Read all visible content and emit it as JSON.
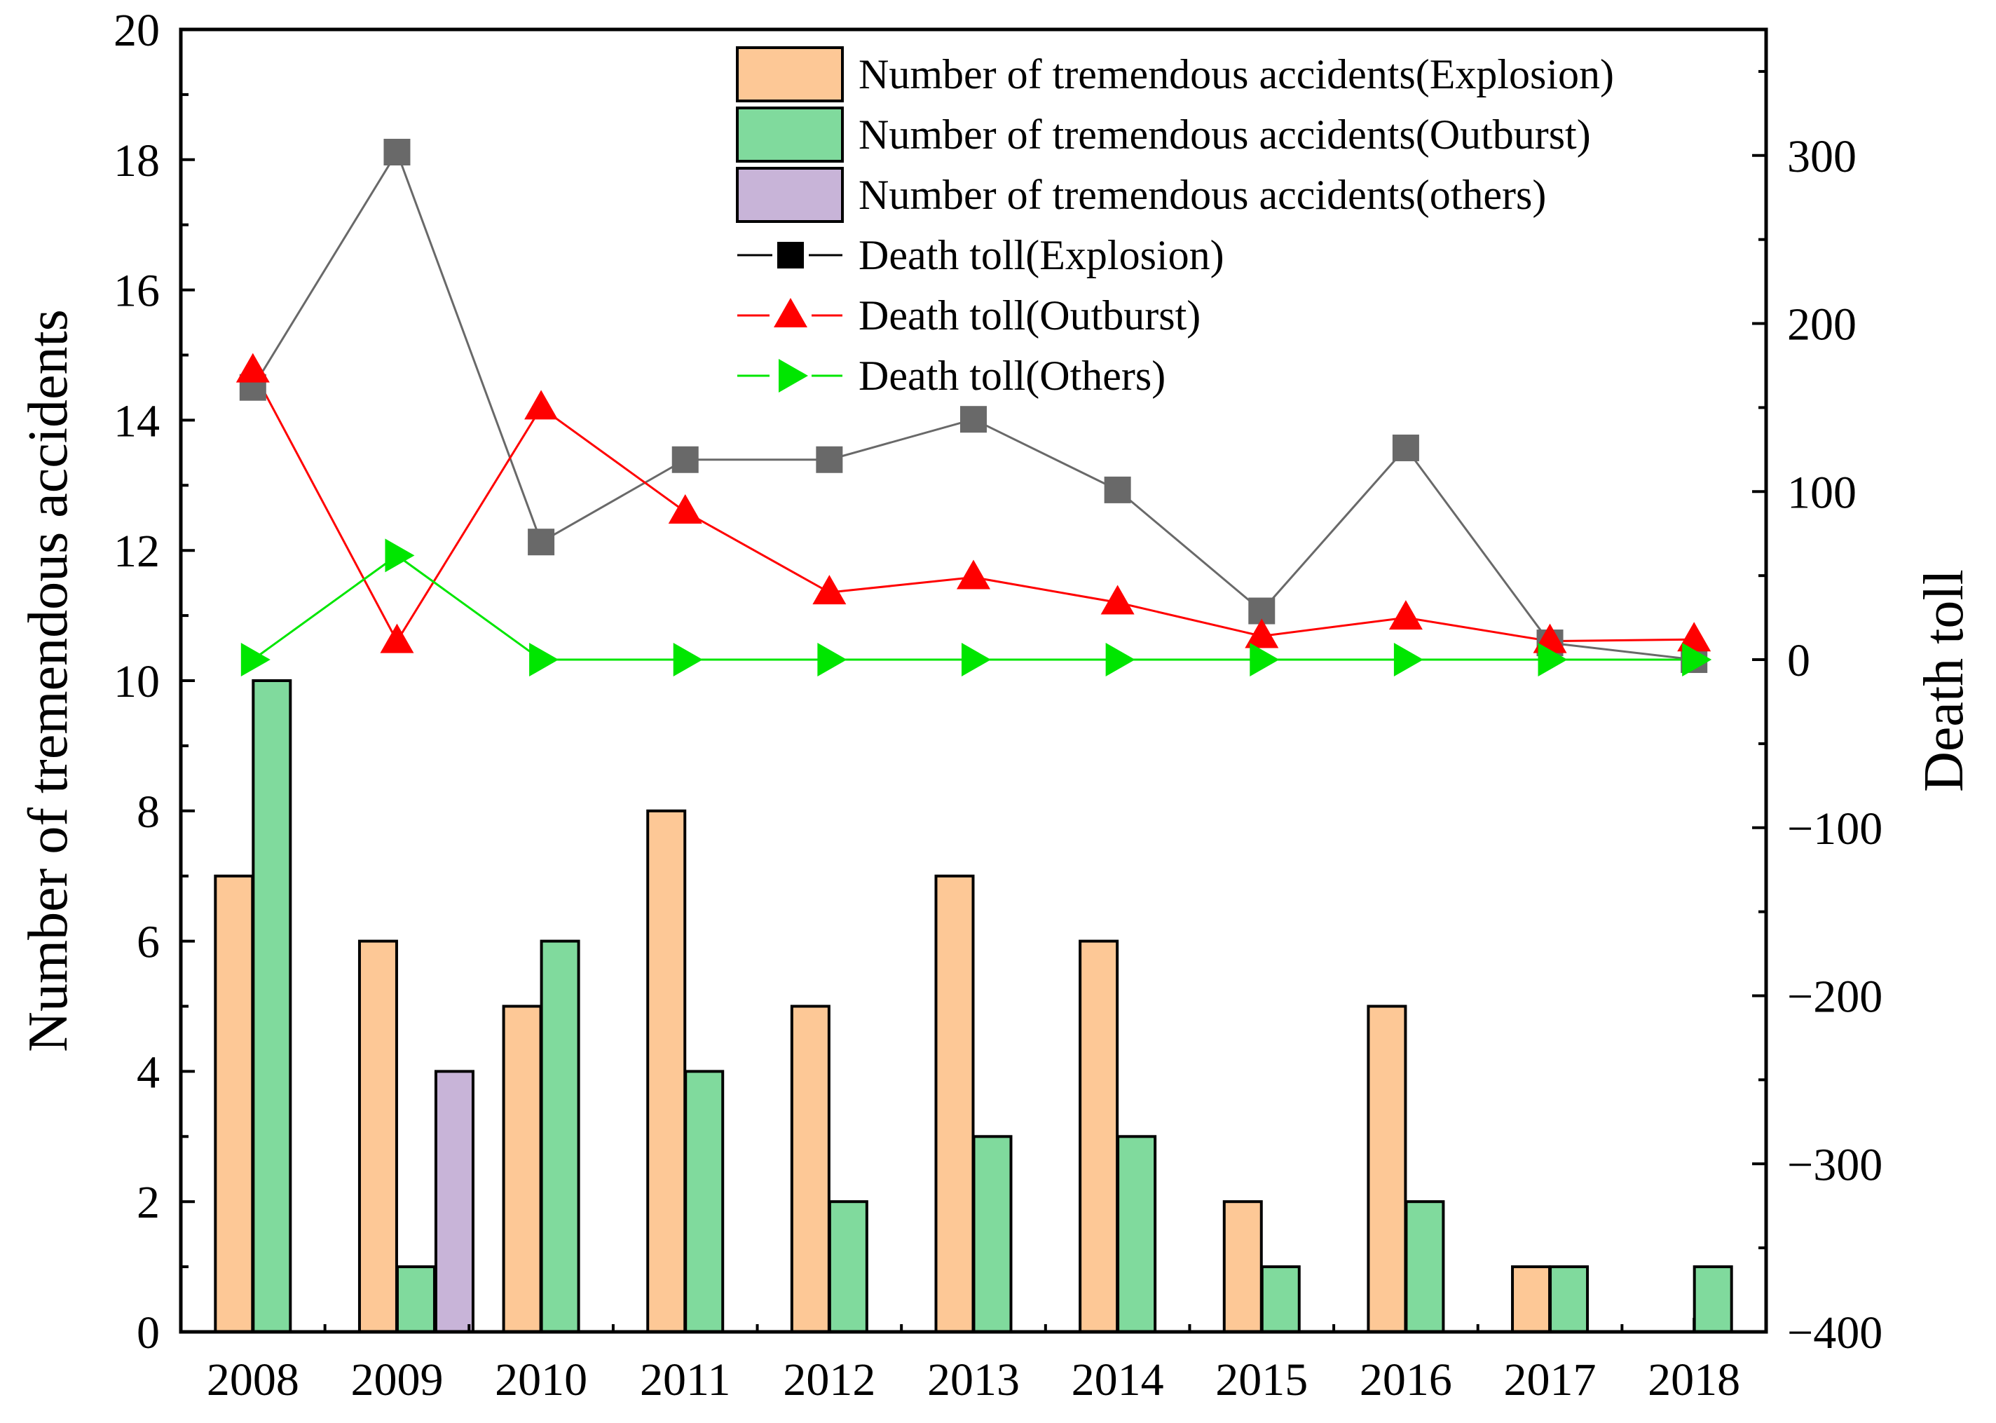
{
  "chart_data": {
    "type": "bar",
    "categories": [
      "2008",
      "2009",
      "2010",
      "2011",
      "2012",
      "2013",
      "2014",
      "2015",
      "2016",
      "2017",
      "2018"
    ],
    "y_left": {
      "label": "Number of tremendous accidents",
      "range": [
        0,
        20
      ],
      "ticks": [
        0,
        2,
        4,
        6,
        8,
        10,
        12,
        14,
        16,
        18,
        20
      ]
    },
    "y_right": {
      "label": "Death toll",
      "range": [
        -400,
        375
      ],
      "ticks": [
        -400,
        -300,
        -200,
        -100,
        0,
        100,
        200,
        300
      ],
      "tick_labels": [
        "−400",
        "−300",
        "−200",
        "−100",
        "0",
        "100",
        "200",
        "300"
      ]
    },
    "bar_series": [
      {
        "name": "Number of tremendous accidents(Explosion)",
        "color": "#FDC896",
        "values": [
          7,
          6,
          5,
          8,
          5,
          7,
          6,
          2,
          5,
          1,
          0
        ]
      },
      {
        "name": "Number of tremendous accidents(Outburst)",
        "color": "#80DA9D",
        "values": [
          10,
          1,
          6,
          4,
          2,
          3,
          3,
          1,
          2,
          1,
          1
        ]
      },
      {
        "name": "Number of tremendous accidents(others)",
        "color": "#C8B4D8",
        "values": [
          0,
          4,
          0,
          0,
          0,
          0,
          0,
          0,
          0,
          0,
          0
        ]
      }
    ],
    "line_series": [
      {
        "name": "Death toll(Explosion)",
        "color": "#696969",
        "legend_color": "#000000",
        "marker": "square",
        "values": [
          162,
          302,
          70,
          119,
          119,
          143,
          101,
          29,
          126,
          10,
          0
        ]
      },
      {
        "name": "Death toll(Outburst)",
        "color": "#FF0000",
        "legend_color": "#FF0000",
        "marker": "triangle-up",
        "values": [
          172,
          11,
          150,
          88,
          40,
          49,
          34,
          14,
          25,
          11,
          12
        ]
      },
      {
        "name": "Death toll(Others)",
        "color": "#00E600",
        "legend_color": "#00E600",
        "marker": "triangle-right",
        "values": [
          0,
          62,
          0,
          0,
          0,
          0,
          0,
          0,
          0,
          0,
          0
        ]
      }
    ],
    "legend_position": "top-right",
    "grid": false
  }
}
